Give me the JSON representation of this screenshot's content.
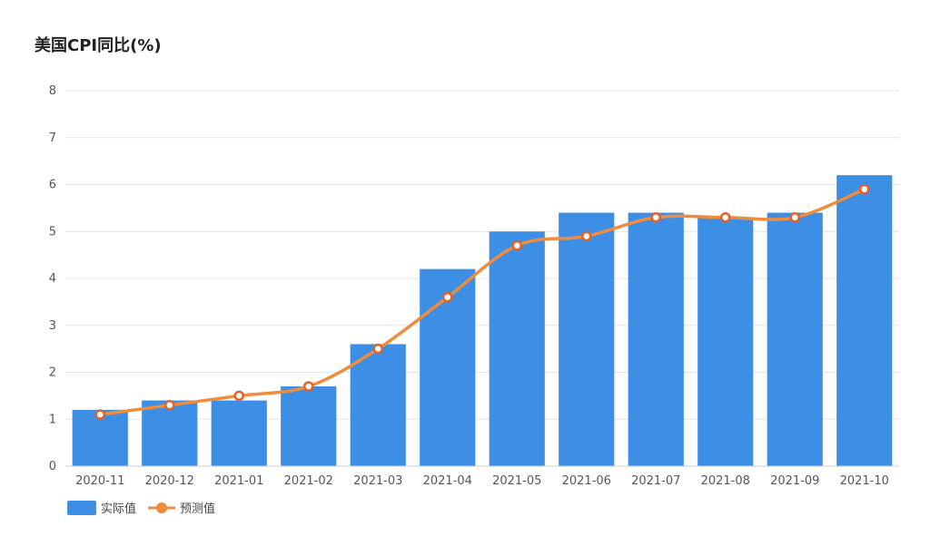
{
  "chart_data": {
    "type": "bar",
    "title": "美国CPI同比(%)",
    "xlabel": "",
    "ylabel": "",
    "ylim": [
      0,
      8
    ],
    "yticks": [
      0,
      1,
      2,
      3,
      4,
      5,
      6,
      7,
      8
    ],
    "categories": [
      "2020-11",
      "2020-12",
      "2021-01",
      "2021-02",
      "2021-03",
      "2021-04",
      "2021-05",
      "2021-06",
      "2021-07",
      "2021-08",
      "2021-09",
      "2021-10"
    ],
    "series": [
      {
        "name": "实际值",
        "kind": "bar",
        "color": "#3d8fe6",
        "values": [
          1.2,
          1.4,
          1.4,
          1.7,
          2.6,
          4.2,
          5.0,
          5.4,
          5.4,
          5.3,
          5.4,
          6.2
        ]
      },
      {
        "name": "预测值",
        "kind": "line",
        "color": "#f08c3c",
        "smooth": true,
        "values": [
          1.1,
          1.3,
          1.5,
          1.7,
          2.5,
          3.6,
          4.7,
          4.9,
          5.3,
          5.3,
          5.3,
          5.9
        ]
      }
    ],
    "grid": true,
    "legend": "bottom-left"
  }
}
